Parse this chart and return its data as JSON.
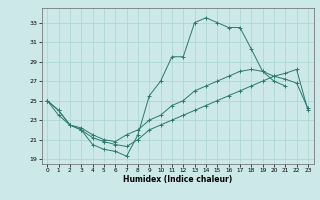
{
  "xlabel": "Humidex (Indice chaleur)",
  "background_color": "#cce8e8",
  "grid_color": "#aad4d0",
  "line_color": "#2a7a6e",
  "xlim": [
    -0.5,
    23.5
  ],
  "ylim": [
    18.5,
    34.5
  ],
  "yticks": [
    19,
    21,
    23,
    25,
    27,
    29,
    31,
    33
  ],
  "xticks": [
    0,
    1,
    2,
    3,
    4,
    5,
    6,
    7,
    8,
    9,
    10,
    11,
    12,
    13,
    14,
    15,
    16,
    17,
    18,
    19,
    20,
    21,
    22,
    23
  ],
  "line_top_x": [
    0,
    1,
    2,
    3,
    4,
    5,
    6,
    7,
    8,
    9,
    10,
    11,
    12,
    13,
    14,
    15,
    16,
    17,
    18,
    19,
    20,
    21
  ],
  "line_top_y": [
    25,
    24,
    22.5,
    22,
    20.5,
    20,
    19.8,
    19.3,
    21.5,
    25.5,
    27,
    29.5,
    29.5,
    33,
    33.5,
    33,
    32.5,
    32.5,
    30.3,
    28,
    27,
    26.5
  ],
  "line_mid_x": [
    0,
    1,
    2,
    3,
    4,
    5,
    6,
    7,
    8,
    9,
    10,
    11,
    12,
    13,
    14,
    15,
    16,
    17,
    18,
    19,
    20,
    21,
    22,
    23
  ],
  "line_mid_y": [
    25,
    24,
    22.5,
    22.2,
    21.5,
    21.0,
    20.8,
    21.5,
    22.0,
    23.0,
    23.5,
    24.5,
    25.0,
    26.0,
    26.5,
    27.0,
    27.5,
    28.0,
    28.2,
    28.0,
    27.5,
    27.2,
    26.8,
    24.2
  ],
  "line_bot_x": [
    0,
    1,
    2,
    3,
    4,
    5,
    6,
    7,
    8,
    9,
    10,
    11,
    12,
    13,
    14,
    15,
    16,
    17,
    18,
    19,
    20,
    21,
    22,
    23
  ],
  "line_bot_y": [
    25,
    23.5,
    22.5,
    22.0,
    21.2,
    20.8,
    20.5,
    20.3,
    21.0,
    22.0,
    22.5,
    23.0,
    23.5,
    24.0,
    24.5,
    25.0,
    25.5,
    26.0,
    26.5,
    27.0,
    27.5,
    27.8,
    28.2,
    24.0
  ]
}
